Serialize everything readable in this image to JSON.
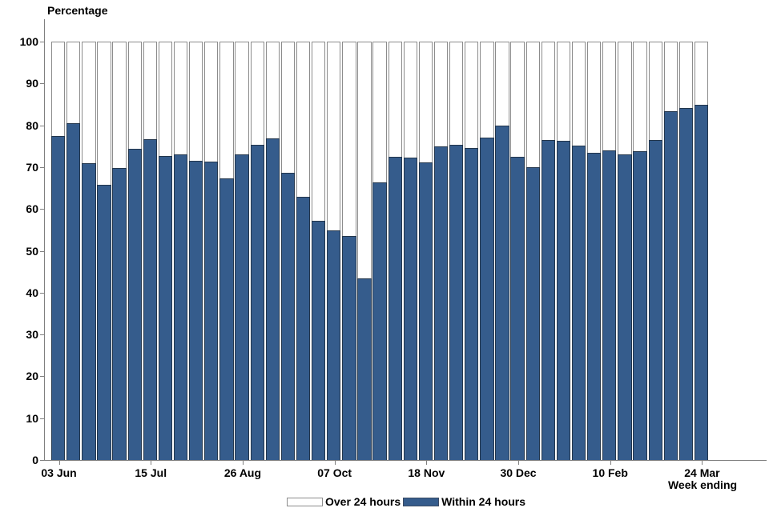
{
  "chart": {
    "y_axis_title": "Percentage",
    "x_axis_title": "Week ending",
    "y_tick_labels": [
      "0",
      "10",
      "20",
      "30",
      "40",
      "50",
      "60",
      "70",
      "80",
      "90",
      "100"
    ],
    "x_tick_labels": [
      "03 Jun",
      "15 Jul",
      "26 Aug",
      "07 Oct",
      "18 Nov",
      "30 Dec",
      "10 Feb",
      "24 Mar"
    ],
    "legend": {
      "items": [
        {
          "label": "Over 24 hours",
          "color": "#ffffff"
        },
        {
          "label": "Within 24 hours",
          "color": "#355c8c"
        }
      ]
    },
    "colors": {
      "within_fill": "#355c8c",
      "bar_outline": "#8c8c8c",
      "fill_outline": "#23364c",
      "axis": "#7f7f7f",
      "text": "#000000"
    }
  },
  "chart_data": {
    "type": "bar",
    "variant": "stacked-100-percent",
    "title": "",
    "xlabel": "Week ending",
    "ylabel": "Percentage",
    "ylim": [
      0,
      100
    ],
    "y_tick_step": 10,
    "grid": false,
    "legend_position": "bottom-center",
    "n_bars": 43,
    "x_tick_label_every": 6,
    "x_tick_labels": [
      "03 Jun",
      "15 Jul",
      "26 Aug",
      "07 Oct",
      "18 Nov",
      "30 Dec",
      "10 Feb",
      "24 Mar"
    ],
    "x_tick_bar_indices": [
      0,
      6,
      12,
      18,
      24,
      30,
      36,
      42
    ],
    "series": [
      {
        "name": "Within 24 hours",
        "color": "#355c8c",
        "values": [
          77.5,
          80.5,
          71.0,
          65.7,
          69.8,
          74.3,
          76.6,
          72.7,
          73.1,
          71.5,
          71.3,
          67.3,
          73.0,
          75.3,
          76.8,
          68.7,
          63.0,
          57.2,
          54.8,
          53.5,
          43.5,
          66.4,
          72.4,
          72.3,
          71.1,
          74.9,
          75.4,
          74.5,
          77.0,
          80.0,
          72.5,
          70.0,
          76.5,
          76.2,
          75.2,
          73.5,
          74.0,
          73.1,
          73.8,
          76.5,
          83.3,
          84.1,
          84.9
        ]
      },
      {
        "name": "Over 24 hours",
        "color": "#ffffff",
        "values": [
          22.5,
          19.5,
          29.0,
          34.3,
          30.2,
          25.7,
          23.4,
          27.3,
          26.9,
          28.5,
          28.7,
          32.7,
          27.0,
          24.7,
          23.2,
          31.3,
          37.0,
          42.8,
          45.2,
          46.5,
          56.5,
          33.6,
          27.6,
          27.7,
          28.9,
          25.1,
          24.6,
          25.5,
          23.0,
          20.0,
          27.5,
          30.0,
          23.5,
          23.8,
          24.8,
          26.5,
          26.0,
          26.9,
          26.2,
          23.5,
          16.7,
          15.9,
          15.1
        ]
      }
    ]
  }
}
